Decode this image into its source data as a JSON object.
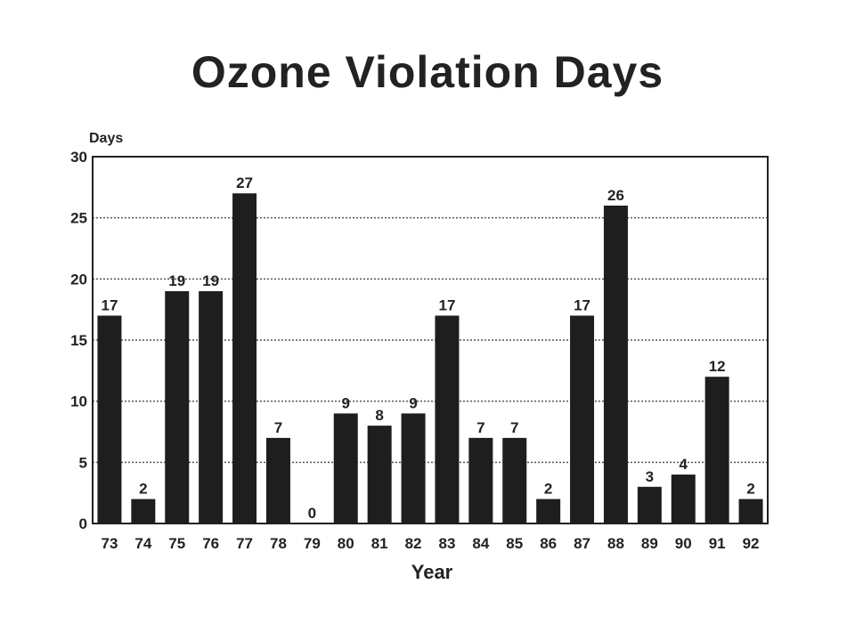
{
  "chart_data": {
    "type": "bar",
    "title": "Ozone Violation Days",
    "ylabel": "Days",
    "xlabel": "Year",
    "ylim": [
      0,
      30
    ],
    "yticks": [
      0,
      5,
      10,
      15,
      20,
      25,
      30
    ],
    "grid": true,
    "bar_color": "#1e1e1e",
    "categories": [
      "73",
      "74",
      "75",
      "76",
      "77",
      "78",
      "79",
      "80",
      "81",
      "82",
      "83",
      "84",
      "85",
      "86",
      "87",
      "88",
      "89",
      "90",
      "91",
      "92"
    ],
    "values": [
      17,
      2,
      19,
      19,
      27,
      7,
      0,
      9,
      8,
      9,
      17,
      7,
      7,
      2,
      17,
      26,
      3,
      4,
      12,
      2
    ]
  }
}
